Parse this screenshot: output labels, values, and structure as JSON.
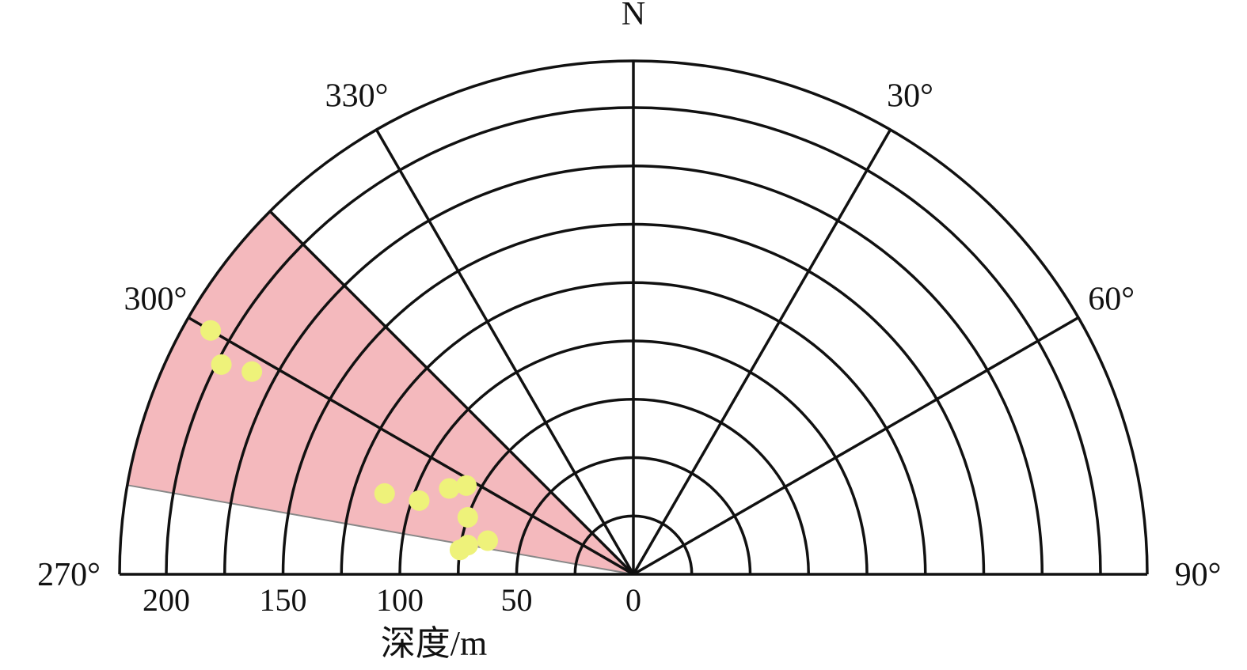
{
  "chart_data": {
    "type": "scatter",
    "coordinate_system": "polar-half",
    "angle_unit": "degrees",
    "angle_range": [
      270,
      90
    ],
    "radius_range": [
      0,
      220
    ],
    "radius_ticks": [
      0,
      50,
      100,
      150,
      200
    ],
    "angle_tick_labels": [
      {
        "angle": 270,
        "label": "270°"
      },
      {
        "angle": 300,
        "label": "300°"
      },
      {
        "angle": 330,
        "label": "330°"
      },
      {
        "angle": 0,
        "label": "N"
      },
      {
        "angle": 30,
        "label": "30°"
      },
      {
        "angle": 60,
        "label": "60°"
      },
      {
        "angle": 90,
        "label": "90°"
      }
    ],
    "radial_label": "深度/m",
    "highlight_sector": {
      "from_angle": 280,
      "to_angle": 315,
      "color": "#f4b9bd"
    },
    "grid": true,
    "points": [
      {
        "angle": 300,
        "depth": 209
      },
      {
        "angle": 297,
        "depth": 198
      },
      {
        "angle": 298,
        "depth": 185
      },
      {
        "angle": 288,
        "depth": 112
      },
      {
        "angle": 289,
        "depth": 97
      },
      {
        "angle": 295,
        "depth": 87
      },
      {
        "angle": 298,
        "depth": 81
      },
      {
        "angle": 289,
        "depth": 75
      },
      {
        "angle": 280,
        "depth": 72
      },
      {
        "angle": 278,
        "depth": 75
      },
      {
        "angle": 283,
        "depth": 64
      }
    ],
    "point_color": "#eef27a",
    "line_color": "#111111"
  }
}
